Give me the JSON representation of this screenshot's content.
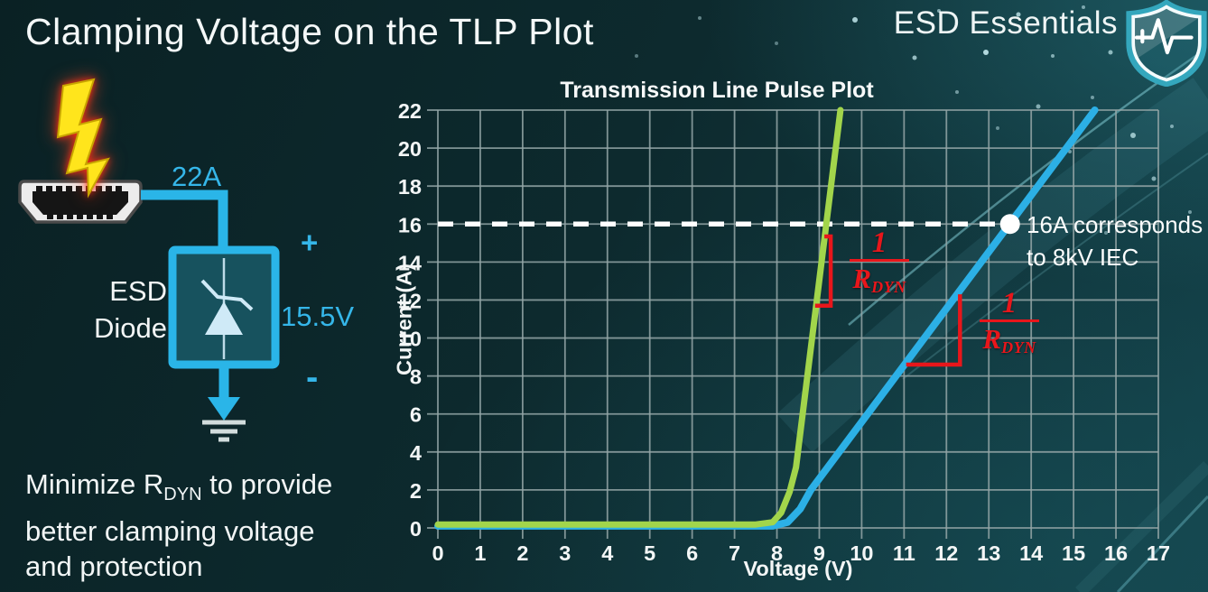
{
  "page": {
    "title": "Clamping Voltage on the TLP Plot",
    "brand": "ESD Essentials",
    "note": {
      "pre": "Minimize R",
      "sub": "DYN",
      "post": " to provide",
      "line2": "better clamping voltage",
      "line3": "and protection"
    }
  },
  "diagram": {
    "surge_current": "22A",
    "device_line1": "ESD",
    "device_line2": "Diode",
    "plus": "+",
    "clamp_voltage": "15.5V",
    "minus": "-",
    "accent_color": "#35b6e9"
  },
  "chart_data": {
    "type": "line",
    "title": "Transmission Line Pulse Plot",
    "xlabel": "Voltage (V)",
    "ylabel": "Current (A)",
    "xlim": [
      0,
      17
    ],
    "ylim": [
      0,
      22
    ],
    "x_ticks": [
      0,
      1,
      2,
      3,
      4,
      5,
      6,
      7,
      8,
      9,
      10,
      11,
      12,
      13,
      14,
      15,
      16,
      17
    ],
    "y_ticks": [
      0,
      2,
      4,
      6,
      8,
      10,
      12,
      14,
      16,
      18,
      20,
      22
    ],
    "grid": true,
    "legend": "none",
    "series": [
      {
        "name": "blue",
        "color": "#2cb0e6",
        "points": [
          [
            0,
            0.1
          ],
          [
            7.9,
            0.1
          ],
          [
            8.25,
            0.3
          ],
          [
            8.55,
            1.0
          ],
          [
            8.8,
            2.0
          ],
          [
            15.5,
            22
          ]
        ]
      },
      {
        "name": "green",
        "color": "#a2d54b",
        "points": [
          [
            0,
            0.18
          ],
          [
            7.5,
            0.18
          ],
          [
            7.9,
            0.3
          ],
          [
            8.1,
            0.8
          ],
          [
            8.3,
            1.9
          ],
          [
            8.45,
            3.2
          ],
          [
            9.5,
            22
          ]
        ]
      }
    ],
    "threshold": {
      "i": 16,
      "v_end": 13.5,
      "style": "dashed",
      "color": "#ffffff"
    },
    "marker": {
      "v": 13.5,
      "i": 16,
      "color": "#ffffff",
      "label_line1": "16A corresponds",
      "label_line2": "to 8kV IEC"
    },
    "slope_annotations": {
      "color": "#e8161b",
      "fraction": {
        "num": "1",
        "den": "R",
        "den_sub": "DYN"
      },
      "brackets": [
        [
          [
            9.12,
            15.35
          ],
          [
            9.27,
            15.35
          ],
          [
            9.27,
            11.7
          ],
          [
            8.9,
            11.7
          ]
        ],
        [
          [
            12.32,
            12.3
          ],
          [
            12.32,
            8.6
          ],
          [
            11.05,
            8.6
          ]
        ]
      ]
    }
  }
}
